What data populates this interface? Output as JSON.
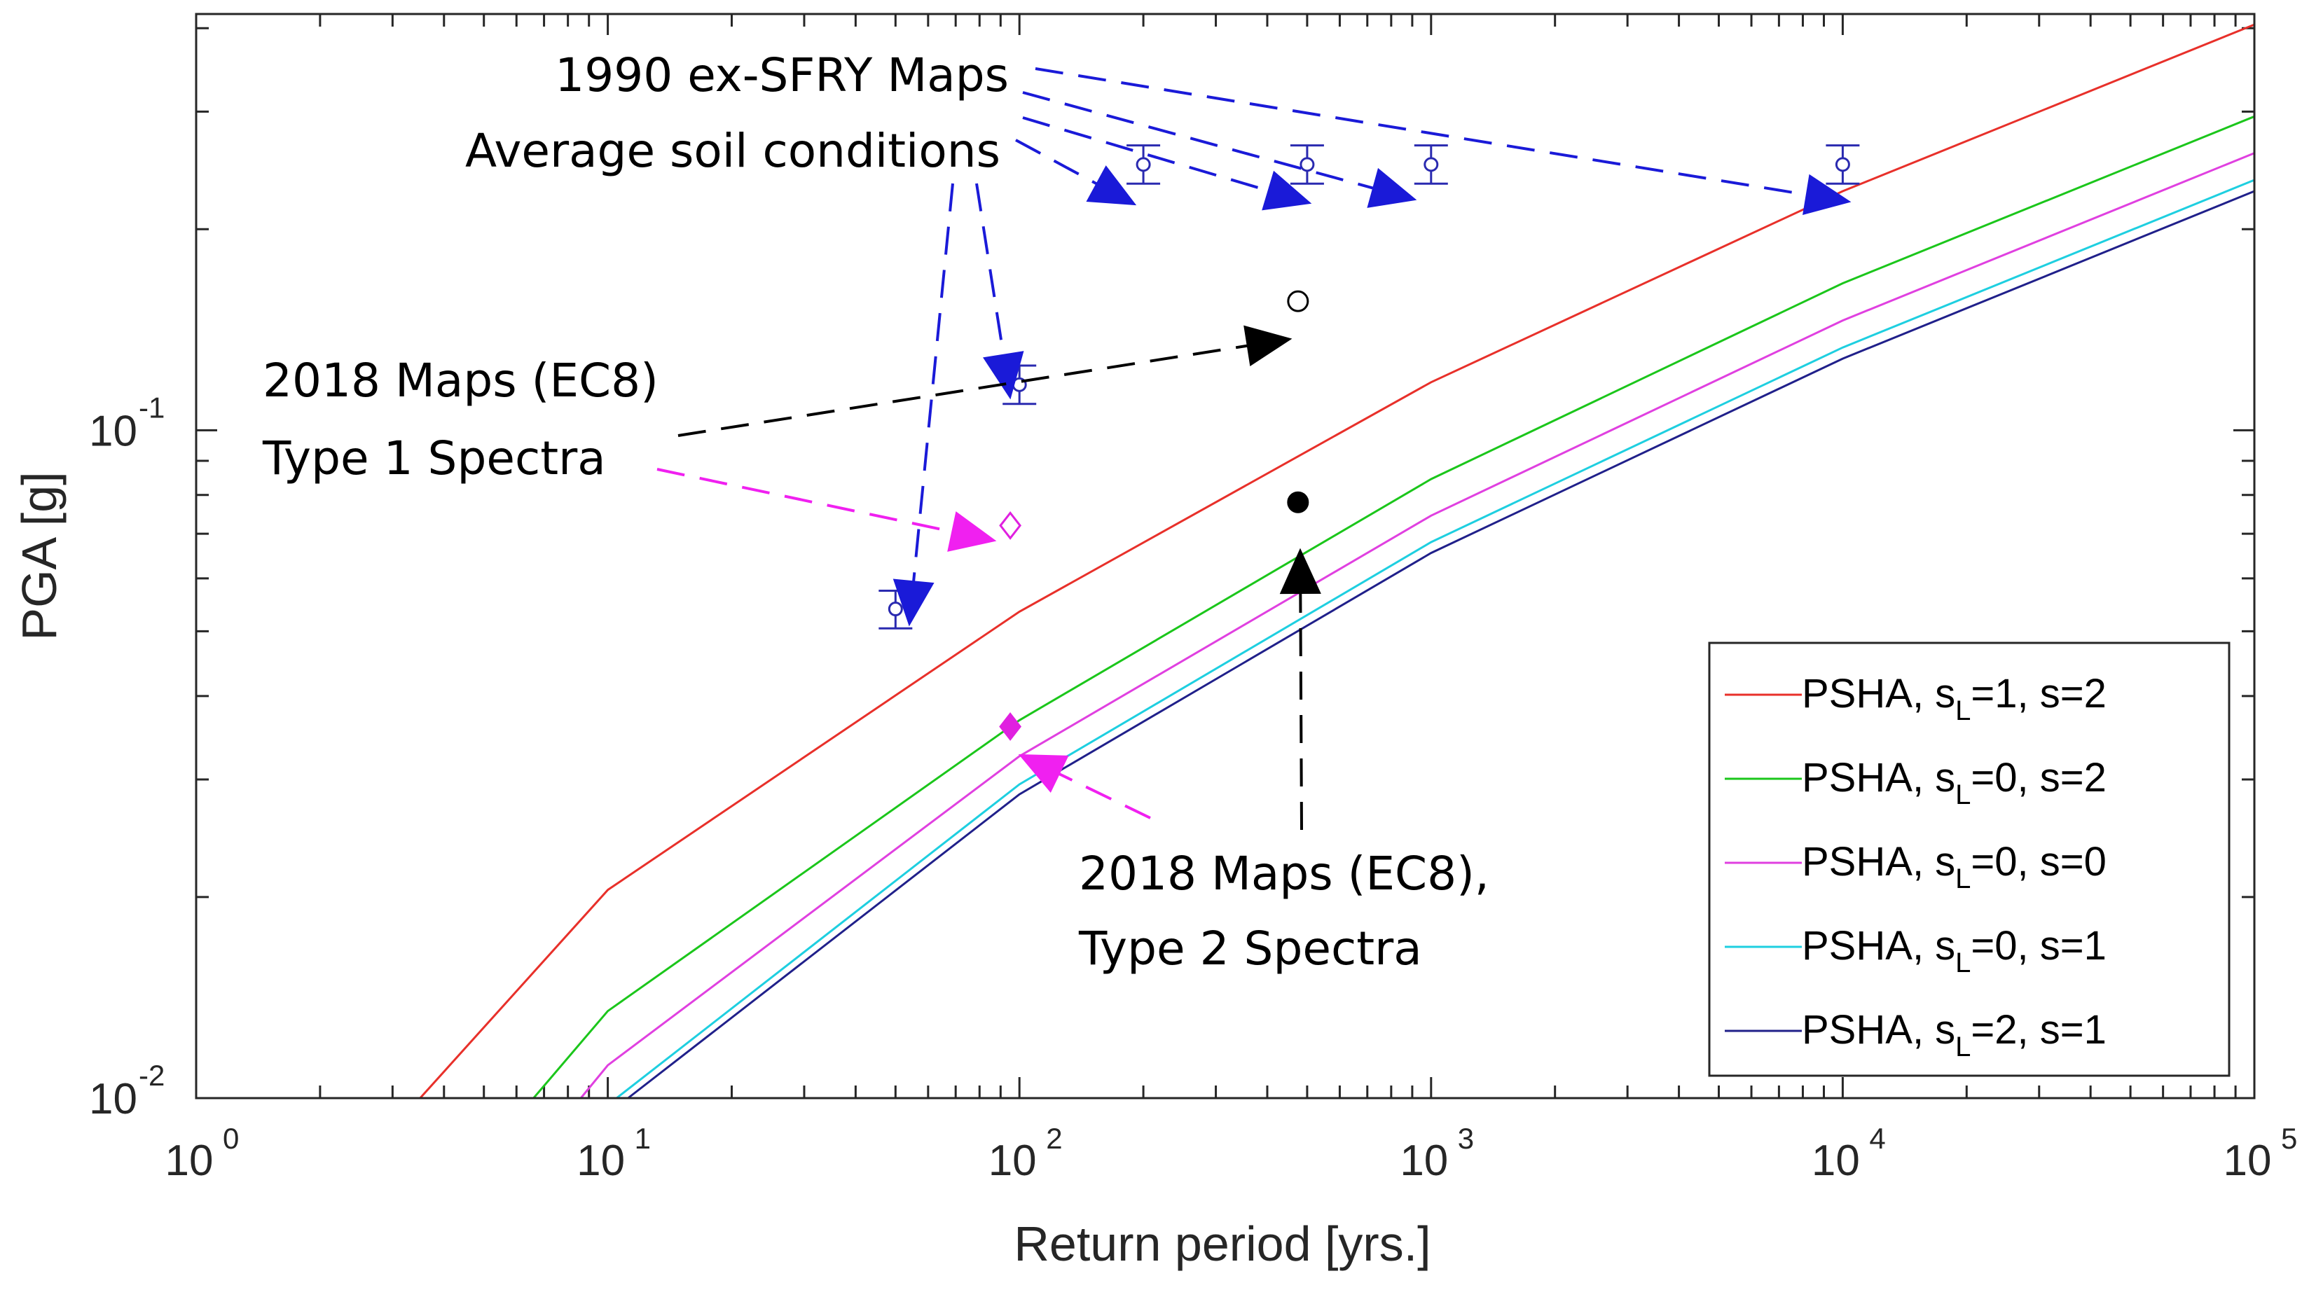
{
  "chart_data": {
    "type": "line",
    "xscale": "log",
    "yscale": "log",
    "xlim": [
      1,
      100000
    ],
    "ylim": [
      0.01,
      0.42
    ],
    "xlabel": "Return period [yrs.]",
    "ylabel": "PGA [g]",
    "x_ticks": [
      {
        "base": "10",
        "exp": "0",
        "value": 1
      },
      {
        "base": "10",
        "exp": "1",
        "value": 10
      },
      {
        "base": "10",
        "exp": "2",
        "value": 100
      },
      {
        "base": "10",
        "exp": "3",
        "value": 1000
      },
      {
        "base": "10",
        "exp": "4",
        "value": 10000
      },
      {
        "base": "10",
        "exp": "5",
        "value": 100000
      }
    ],
    "y_ticks": [
      {
        "base": "10",
        "exp": "-2",
        "value": 0.01
      },
      {
        "base": "10",
        "exp": "-1",
        "value": 0.1
      }
    ],
    "series": [
      {
        "name": "PSHA, s_L=1, s=2",
        "label_main": "PSHA, s",
        "label_sub": "L",
        "label_rest": "=1, s=2",
        "color": "#e8302a",
        "x": [
          3.5,
          10,
          100,
          1000,
          10000,
          100000
        ],
        "y": [
          0.01,
          0.0205,
          0.0535,
          0.118,
          0.228,
          0.405
        ]
      },
      {
        "name": "PSHA, s_L=0, s=2",
        "label_main": "PSHA, s",
        "label_sub": "L",
        "label_rest": "=0, s=2",
        "color": "#1bc61b",
        "x": [
          6.6,
          10,
          100,
          1000,
          10000,
          100000
        ],
        "y": [
          0.01,
          0.0135,
          0.0368,
          0.0845,
          0.166,
          0.295
        ]
      },
      {
        "name": "PSHA, s_L=0, s=0",
        "label_main": "PSHA, s",
        "label_sub": "L",
        "label_rest": "=0, s=0",
        "color": "#e040e0",
        "x": [
          8.6,
          10,
          100,
          1000,
          10000,
          100000
        ],
        "y": [
          0.01,
          0.0112,
          0.0325,
          0.0745,
          0.146,
          0.26
        ]
      },
      {
        "name": "PSHA, s_L=0, s=1",
        "label_main": "PSHA, s",
        "label_sub": "L",
        "label_rest": "=0, s=1",
        "color": "#1ecfe0",
        "x": [
          10.5,
          100,
          1000,
          10000,
          100000
        ],
        "y": [
          0.01,
          0.0295,
          0.068,
          0.133,
          0.237
        ]
      },
      {
        "name": "PSHA, s_L=2, s=1",
        "label_main": "PSHA, s",
        "label_sub": "L",
        "label_rest": "=2, s=1",
        "color": "#20208a",
        "x": [
          11.2,
          100,
          1000,
          10000,
          100000
        ],
        "y": [
          0.01,
          0.0285,
          0.0655,
          0.128,
          0.228
        ]
      }
    ],
    "points_1990": {
      "name": "1990 ex-SFRY Maps",
      "color": "#2a2ab0",
      "points": [
        {
          "x": 50,
          "y": 0.054,
          "lo": 0.0505,
          "hi": 0.0575
        },
        {
          "x": 100,
          "y": 0.117,
          "lo": 0.1095,
          "hi": 0.125
        },
        {
          "x": 200,
          "y": 0.25,
          "lo": 0.234,
          "hi": 0.267
        },
        {
          "x": 500,
          "y": 0.25,
          "lo": 0.234,
          "hi": 0.267
        },
        {
          "x": 1000,
          "y": 0.25,
          "lo": 0.234,
          "hi": 0.267
        },
        {
          "x": 10000,
          "y": 0.25,
          "lo": 0.234,
          "hi": 0.267
        }
      ]
    },
    "points_2018_type1": [
      {
        "x": 475,
        "y": 0.156,
        "marker": "circle-open",
        "color": "#000000"
      },
      {
        "x": 95,
        "y": 0.072,
        "marker": "diamond-open",
        "color": "#e020e0"
      }
    ],
    "points_2018_type2": [
      {
        "x": 475,
        "y": 0.078,
        "marker": "circle-filled",
        "color": "#000000"
      },
      {
        "x": 95,
        "y": 0.036,
        "marker": "diamond-filled",
        "color": "#e020e0"
      }
    ],
    "annotations": [
      {
        "id": "sfry1",
        "text": "1990 ex-SFRY Maps"
      },
      {
        "id": "sfry2",
        "text": "Average soil conditions"
      },
      {
        "id": "ec8t1a",
        "text": "2018 Maps (EC8)"
      },
      {
        "id": "ec8t1b",
        "text": "Type 1 Spectra"
      },
      {
        "id": "ec8t2a",
        "text": "2018 Maps (EC8),"
      },
      {
        "id": "ec8t2b",
        "text": "Type 2 Spectra"
      }
    ],
    "legend_position": "bottom-right"
  }
}
